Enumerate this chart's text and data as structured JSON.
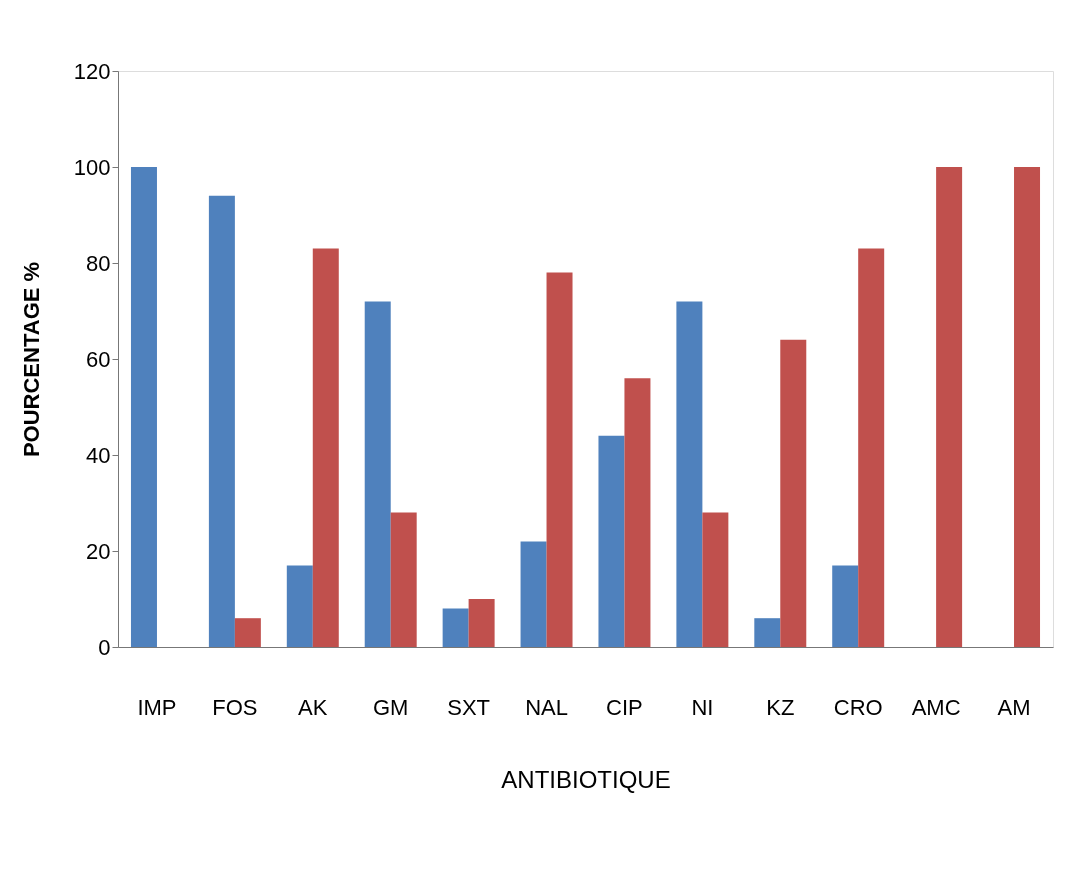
{
  "chart_data": {
    "type": "bar",
    "xlabel": "ANTIBIOTIQUE",
    "ylabel": "POURCENTAGE %",
    "categories": [
      "IMP",
      "FOS",
      "AK",
      "GM",
      "SXT",
      "NAL",
      "CIP",
      "NI",
      "KZ",
      "CRO",
      "AMC",
      "AM"
    ],
    "series": [
      {
        "color": "#4f81bd",
        "values": [
          100,
          94,
          17,
          72,
          8,
          22,
          44,
          72,
          6,
          17,
          0,
          0
        ]
      },
      {
        "color": "#c0504d",
        "values": [
          0,
          6,
          83,
          28,
          10,
          78,
          56,
          28,
          64,
          83,
          100,
          100
        ]
      }
    ],
    "ylim": [
      0,
      120
    ],
    "yticks": [
      0,
      20,
      40,
      60,
      80,
      100,
      120
    ],
    "grid": false,
    "legend": false
  }
}
